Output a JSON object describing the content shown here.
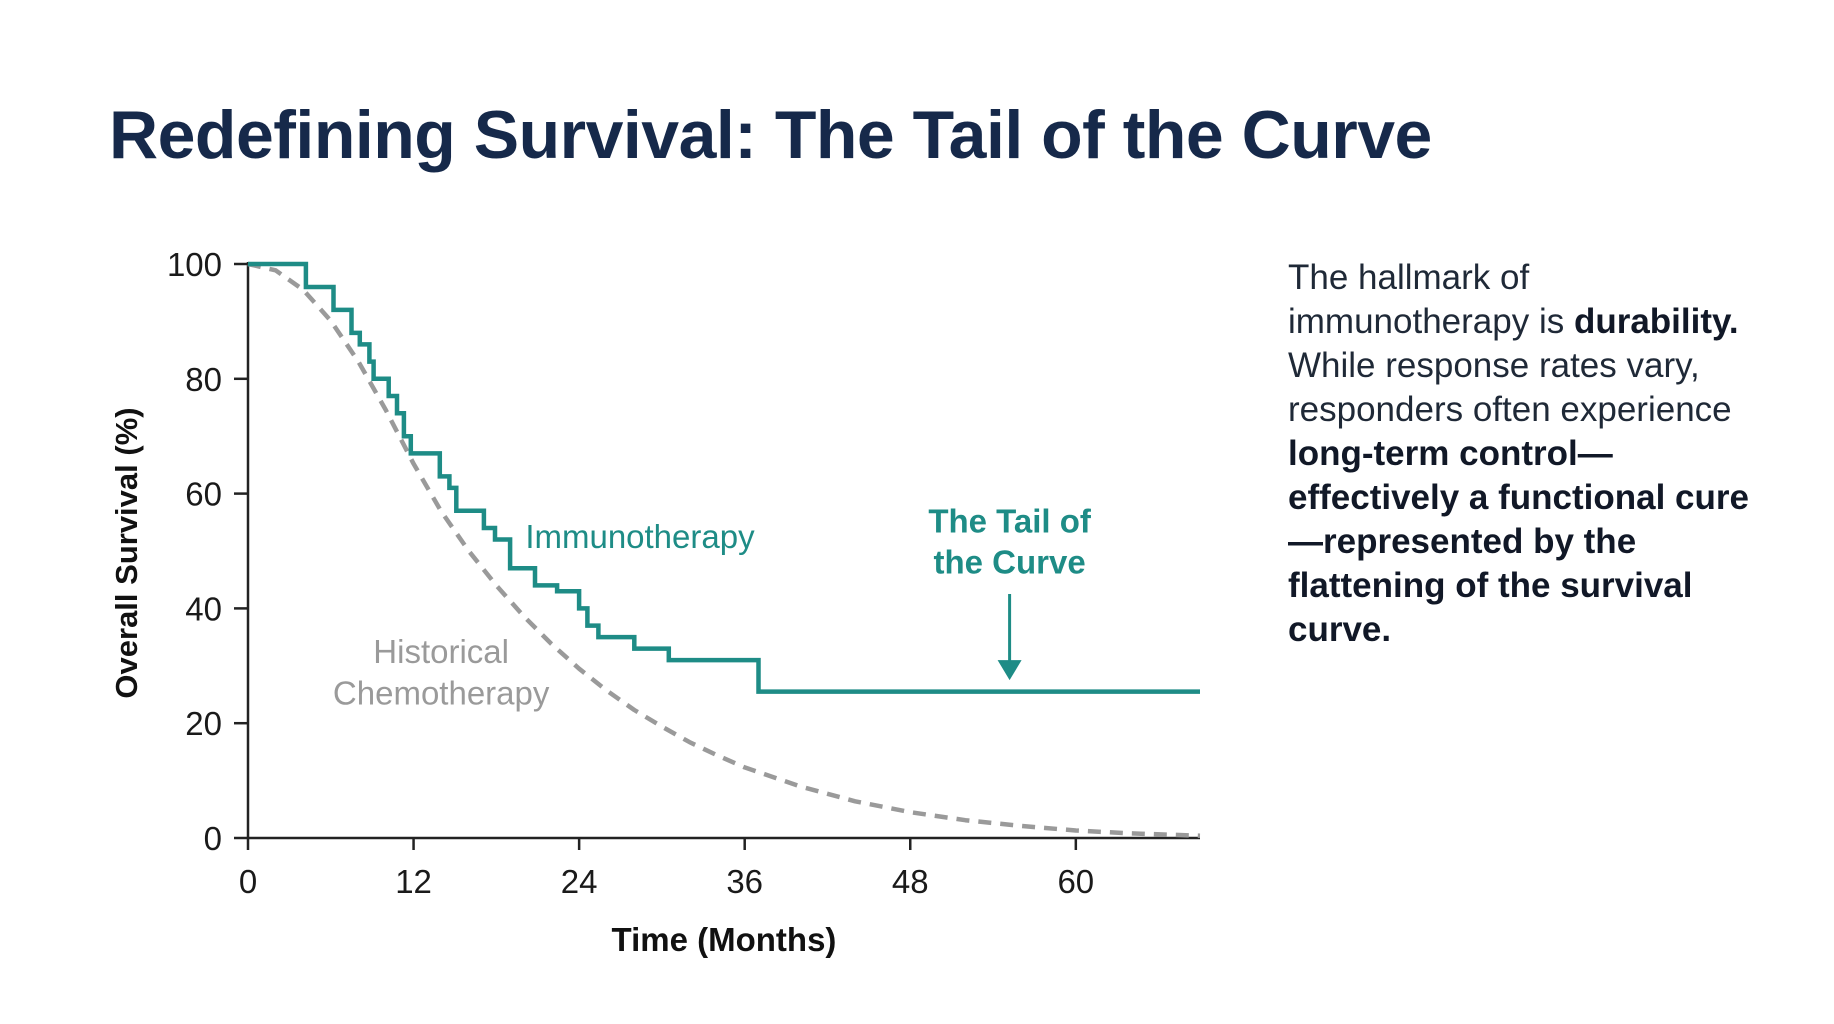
{
  "title": "Redefining Survival: The Tail of the Curve",
  "side_text": {
    "part1": "The hallmark of immunotherapy is ",
    "bold1": "durability.",
    "part2": " While response rates vary, responders often experience ",
    "bold2": "long-term control—effectively a functional cure—represented by the flattening of the survival curve."
  },
  "colors": {
    "immunotherapy": "#1e8c86",
    "chemotherapy": "#9a9a9a",
    "axis": "#222222",
    "title": "#16294a"
  },
  "chart_data": {
    "type": "line",
    "title": "",
    "xlabel": "Time (Months)",
    "ylabel": "Overall Survival (%)",
    "xlim": [
      0,
      69
    ],
    "ylim": [
      0,
      100
    ],
    "xticks": [
      0,
      12,
      24,
      36,
      48,
      60
    ],
    "yticks": [
      0,
      20,
      40,
      60,
      80,
      100
    ],
    "grid": false,
    "legend": "none",
    "series": [
      {
        "name": "Immunotherapy",
        "style": "step",
        "points": [
          [
            0,
            100
          ],
          [
            4.2,
            100
          ],
          [
            4.2,
            96
          ],
          [
            6.2,
            96
          ],
          [
            6.2,
            92
          ],
          [
            7.5,
            92
          ],
          [
            7.5,
            88
          ],
          [
            8.1,
            88
          ],
          [
            8.1,
            86
          ],
          [
            8.8,
            86
          ],
          [
            8.8,
            83
          ],
          [
            9.1,
            83
          ],
          [
            9.1,
            80
          ],
          [
            10.2,
            80
          ],
          [
            10.2,
            77
          ],
          [
            10.8,
            77
          ],
          [
            10.8,
            74
          ],
          [
            11.3,
            74
          ],
          [
            11.3,
            70
          ],
          [
            11.8,
            70
          ],
          [
            11.8,
            67
          ],
          [
            13.9,
            67
          ],
          [
            13.9,
            63
          ],
          [
            14.6,
            63
          ],
          [
            14.6,
            61
          ],
          [
            15.1,
            61
          ],
          [
            15.1,
            57
          ],
          [
            17.1,
            57
          ],
          [
            17.1,
            54
          ],
          [
            17.9,
            54
          ],
          [
            17.9,
            52
          ],
          [
            19.0,
            52
          ],
          [
            19.0,
            47
          ],
          [
            20.8,
            47
          ],
          [
            20.8,
            44
          ],
          [
            22.4,
            44
          ],
          [
            22.4,
            43
          ],
          [
            24.0,
            43
          ],
          [
            24.0,
            40
          ],
          [
            24.6,
            40
          ],
          [
            24.6,
            37
          ],
          [
            25.4,
            37
          ],
          [
            25.4,
            35
          ],
          [
            28.0,
            35
          ],
          [
            28.0,
            33
          ],
          [
            30.5,
            33
          ],
          [
            30.5,
            31
          ],
          [
            37.0,
            31
          ],
          [
            37.0,
            25.5
          ],
          [
            69.0,
            25.5
          ]
        ]
      },
      {
        "name": "Historical Chemotherapy",
        "style": "dashed",
        "x": [
          0,
          2,
          4,
          6,
          8,
          10,
          12,
          14,
          16,
          18,
          20,
          22,
          24,
          26,
          28,
          30,
          32,
          34,
          36,
          40,
          44,
          48,
          52,
          56,
          60,
          64,
          69
        ],
        "y": [
          100,
          98.9,
          95.5,
          90.1,
          83.0,
          74.5,
          65.2,
          56.9,
          50.0,
          44.0,
          38.6,
          33.8,
          29.5,
          25.7,
          22.3,
          19.4,
          16.7,
          14.4,
          12.3,
          9.0,
          6.4,
          4.5,
          3.1,
          2.1,
          1.3,
          0.8,
          0.4
        ]
      }
    ],
    "annotations": [
      {
        "text": "Immunotherapy",
        "series": "Immunotherapy"
      },
      {
        "text": "Historical",
        "series": "Historical Chemotherapy"
      },
      {
        "text": "Chemotherapy",
        "series": "Historical Chemotherapy"
      },
      {
        "text": "The Tail of",
        "series": "Immunotherapy"
      },
      {
        "text": "the Curve",
        "series": "Immunotherapy"
      }
    ]
  }
}
